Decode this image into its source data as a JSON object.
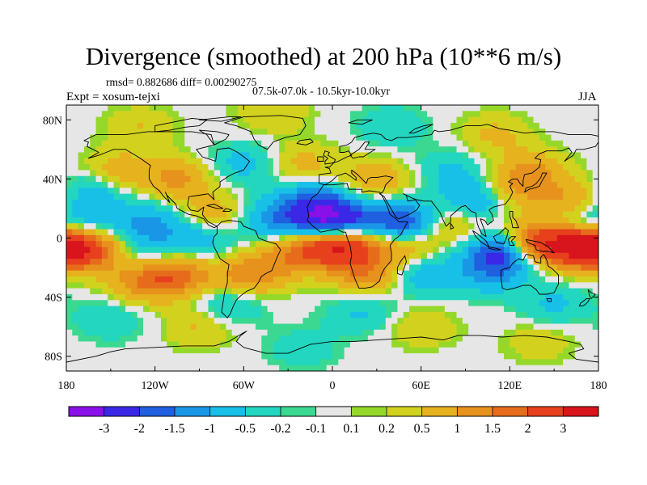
{
  "header": {
    "title": "Divergence (smoothed) at 200 hPa (10**6 m/s)",
    "stats": "rmsd= 0.882686 diff= 0.00290275",
    "experiment": "Expt = xosum-tejxi",
    "period": "07.5k-07.0k - 10.5kyr-10.0kyr",
    "season": "JJA"
  },
  "chart_data": {
    "type": "heatmap",
    "title": "Divergence (smoothed) at 200 hPa (10**6 m/s)",
    "subtitle": "rmsd= 0.882686 diff= 0.00290275",
    "projection": "cylindrical equidistant",
    "xlim": [
      -180,
      180
    ],
    "ylim": [
      -90,
      90
    ],
    "x_ticks": [
      {
        "value": -180,
        "label": "180"
      },
      {
        "value": -120,
        "label": "120W"
      },
      {
        "value": -60,
        "label": "60W"
      },
      {
        "value": 0,
        "label": "0"
      },
      {
        "value": 60,
        "label": "60E"
      },
      {
        "value": 120,
        "label": "120E"
      },
      {
        "value": 180,
        "label": "180"
      }
    ],
    "y_ticks": [
      {
        "value": 80,
        "label": "80N"
      },
      {
        "value": 40,
        "label": "40N"
      },
      {
        "value": 0,
        "label": "0"
      },
      {
        "value": -40,
        "label": "40S"
      },
      {
        "value": -80,
        "label": "80S"
      }
    ],
    "colorbar": {
      "levels": [
        -3,
        -2,
        -1.5,
        -1,
        -0.5,
        -0.2,
        -0.1,
        0.1,
        0.2,
        0.5,
        1,
        1.5,
        2,
        3
      ],
      "labels": [
        "-3",
        "-2",
        "-1.5",
        "-1",
        "-0.5",
        "-0.2",
        "-0.1",
        "0.1",
        "0.2",
        "0.5",
        "1",
        "1.5",
        "2",
        "3"
      ],
      "colors": [
        "#8a10e8",
        "#3a28e6",
        "#1f5fe0",
        "#1a96e6",
        "#18c0e8",
        "#22d6c0",
        "#3ad890",
        "#e6e6e6",
        "#96d82a",
        "#d2d21e",
        "#e6b21e",
        "#e6921c",
        "#e66c1c",
        "#e6401c",
        "#d8141c"
      ]
    },
    "anomalies": [
      {
        "lon": 5,
        "lat": -5,
        "value": 3.2
      },
      {
        "lon": 140,
        "lat": -3,
        "value": 2.8
      },
      {
        "lon": 170,
        "lat": -5,
        "value": 2.4
      },
      {
        "lon": -175,
        "lat": -7,
        "value": 2.2
      },
      {
        "lon": -150,
        "lat": -10,
        "value": 0.9
      },
      {
        "lon": -105,
        "lat": -25,
        "value": 1.6
      },
      {
        "lon": -128,
        "lat": -30,
        "value": 1.2
      },
      {
        "lon": -55,
        "lat": -25,
        "value": 1.4
      },
      {
        "lon": -25,
        "lat": -10,
        "value": 1.3
      },
      {
        "lon": 25,
        "lat": -25,
        "value": 1.3
      },
      {
        "lon": 48,
        "lat": -5,
        "value": 1.1
      },
      {
        "lon": 120,
        "lat": 30,
        "value": 1.1
      },
      {
        "lon": 135,
        "lat": 45,
        "value": 1.0
      },
      {
        "lon": 165,
        "lat": 25,
        "value": 1.2
      },
      {
        "lon": -105,
        "lat": 40,
        "value": 1.1
      },
      {
        "lon": -145,
        "lat": 45,
        "value": 0.8
      },
      {
        "lon": -20,
        "lat": 50,
        "value": 0.7
      },
      {
        "lon": 30,
        "lat": 40,
        "value": 0.9
      },
      {
        "lon": -80,
        "lat": 15,
        "value": 0.9
      },
      {
        "lon": 85,
        "lat": 10,
        "value": 0.8
      },
      {
        "lon": 0,
        "lat": 12,
        "value": -3.2
      },
      {
        "lon": 45,
        "lat": 10,
        "value": -2.2
      },
      {
        "lon": 115,
        "lat": -10,
        "value": -2.4
      },
      {
        "lon": 100,
        "lat": 25,
        "value": -1.4
      },
      {
        "lon": -15,
        "lat": 25,
        "value": -1.3
      },
      {
        "lon": -40,
        "lat": 12,
        "value": -1.2
      },
      {
        "lon": -125,
        "lat": 10,
        "value": -1.1
      },
      {
        "lon": -170,
        "lat": 10,
        "value": -0.8
      },
      {
        "lon": -165,
        "lat": 30,
        "value": -1.0
      },
      {
        "lon": -90,
        "lat": 0,
        "value": -0.9
      },
      {
        "lon": 60,
        "lat": -25,
        "value": -1.0
      },
      {
        "lon": -130,
        "lat": -10,
        "value": -0.8
      },
      {
        "lon": 105,
        "lat": -25,
        "value": -0.8
      },
      {
        "lon": 165,
        "lat": 10,
        "value": -0.9
      },
      {
        "lon": 80,
        "lat": 45,
        "value": -0.6
      },
      {
        "lon": -60,
        "lat": 50,
        "value": -0.7
      },
      {
        "lon": -70,
        "lat": -45,
        "value": -0.7
      },
      {
        "lon": 20,
        "lat": -50,
        "value": -0.6
      },
      {
        "lon": -150,
        "lat": -55,
        "value": -0.5
      },
      {
        "lon": 150,
        "lat": -45,
        "value": -0.6
      },
      {
        "lon": 110,
        "lat": 70,
        "value": 0.6
      },
      {
        "lon": -130,
        "lat": 75,
        "value": 0.5
      },
      {
        "lon": 40,
        "lat": 75,
        "value": -0.5
      },
      {
        "lon": -40,
        "lat": 85,
        "value": 0.5
      },
      {
        "lon": -90,
        "lat": -60,
        "value": 0.6
      },
      {
        "lon": 60,
        "lat": -60,
        "value": 0.5
      },
      {
        "lon": 140,
        "lat": -70,
        "value": 0.4
      },
      {
        "lon": -20,
        "lat": -75,
        "value": -0.4
      }
    ]
  }
}
